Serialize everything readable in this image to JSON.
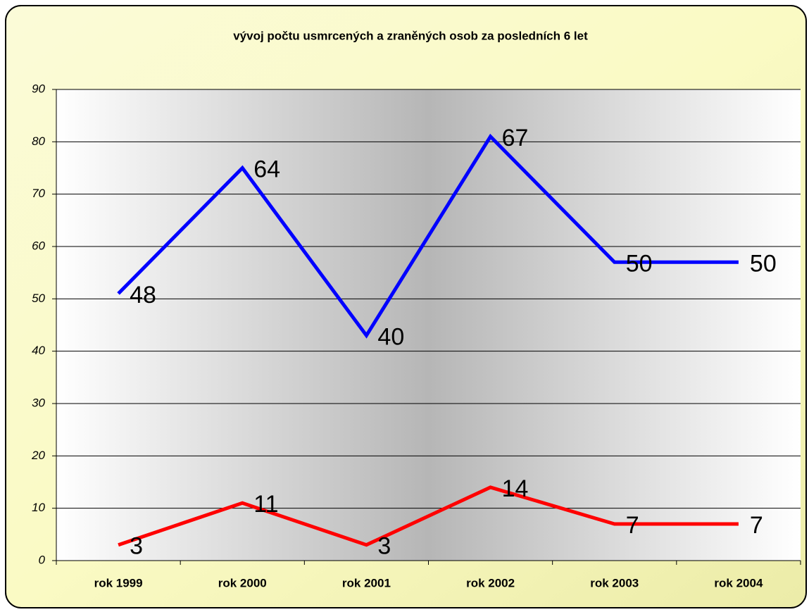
{
  "chart_data": {
    "type": "line",
    "stacked": true,
    "title": "vývoj počtu usmrcených a zraněných osob za posledních 6 let",
    "categories": [
      "rok 1999",
      "rok 2000",
      "rok 2001",
      "rok 2002",
      "rok 2003",
      "rok 2004"
    ],
    "series": [
      {
        "color": "#ff0000",
        "values": [
          3,
          11,
          3,
          14,
          7,
          7
        ]
      },
      {
        "color": "#0000ff",
        "values": [
          48,
          64,
          40,
          67,
          50,
          50
        ]
      }
    ],
    "ylim": [
      0,
      90
    ],
    "yticks": [
      0,
      10,
      20,
      30,
      40,
      50,
      60,
      70,
      80,
      90
    ],
    "grid": true
  }
}
